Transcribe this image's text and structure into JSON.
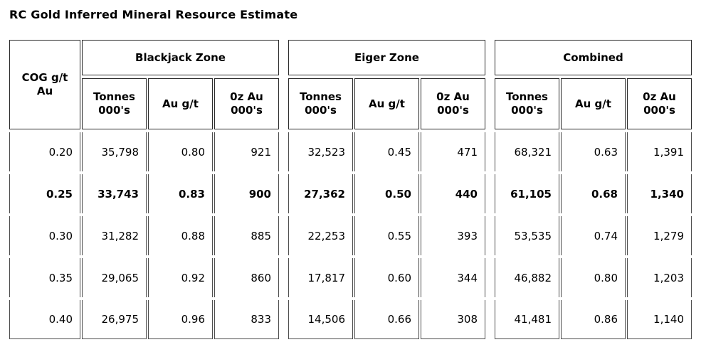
{
  "title": "RC Gold Inferred Mineral Resource Estimate",
  "table": {
    "cog_header": "COG g/t Au",
    "zones": {
      "blackjack": "Blackjack Zone",
      "eiger": "Eiger Zone",
      "combined": "Combined"
    },
    "sub_headers": {
      "tonnes": "Tonnes 000's",
      "grade": "Au g/t",
      "ounces": "0z Au 000's"
    },
    "rows": [
      {
        "cog": "0.20",
        "bold": false,
        "blackjack": [
          "35,798",
          "0.80",
          "921"
        ],
        "eiger": [
          "32,523",
          "0.45",
          "471"
        ],
        "combined": [
          "68,321",
          "0.63",
          "1,391"
        ]
      },
      {
        "cog": "0.25",
        "bold": true,
        "blackjack": [
          "33,743",
          "0.83",
          "900"
        ],
        "eiger": [
          "27,362",
          "0.50",
          "440"
        ],
        "combined": [
          "61,105",
          "0.68",
          "1,340"
        ]
      },
      {
        "cog": "0.30",
        "bold": false,
        "blackjack": [
          "31,282",
          "0.88",
          "885"
        ],
        "eiger": [
          "22,253",
          "0.55",
          "393"
        ],
        "combined": [
          "53,535",
          "0.74",
          "1,279"
        ]
      },
      {
        "cog": "0.35",
        "bold": false,
        "blackjack": [
          "29,065",
          "0.92",
          "860"
        ],
        "eiger": [
          "17,817",
          "0.60",
          "344"
        ],
        "combined": [
          "46,882",
          "0.80",
          "1,203"
        ]
      },
      {
        "cog": "0.40",
        "bold": false,
        "blackjack": [
          "26,975",
          "0.96",
          "833"
        ],
        "eiger": [
          "14,506",
          "0.66",
          "308"
        ],
        "combined": [
          "41,481",
          "0.86",
          "1,140"
        ]
      }
    ]
  }
}
